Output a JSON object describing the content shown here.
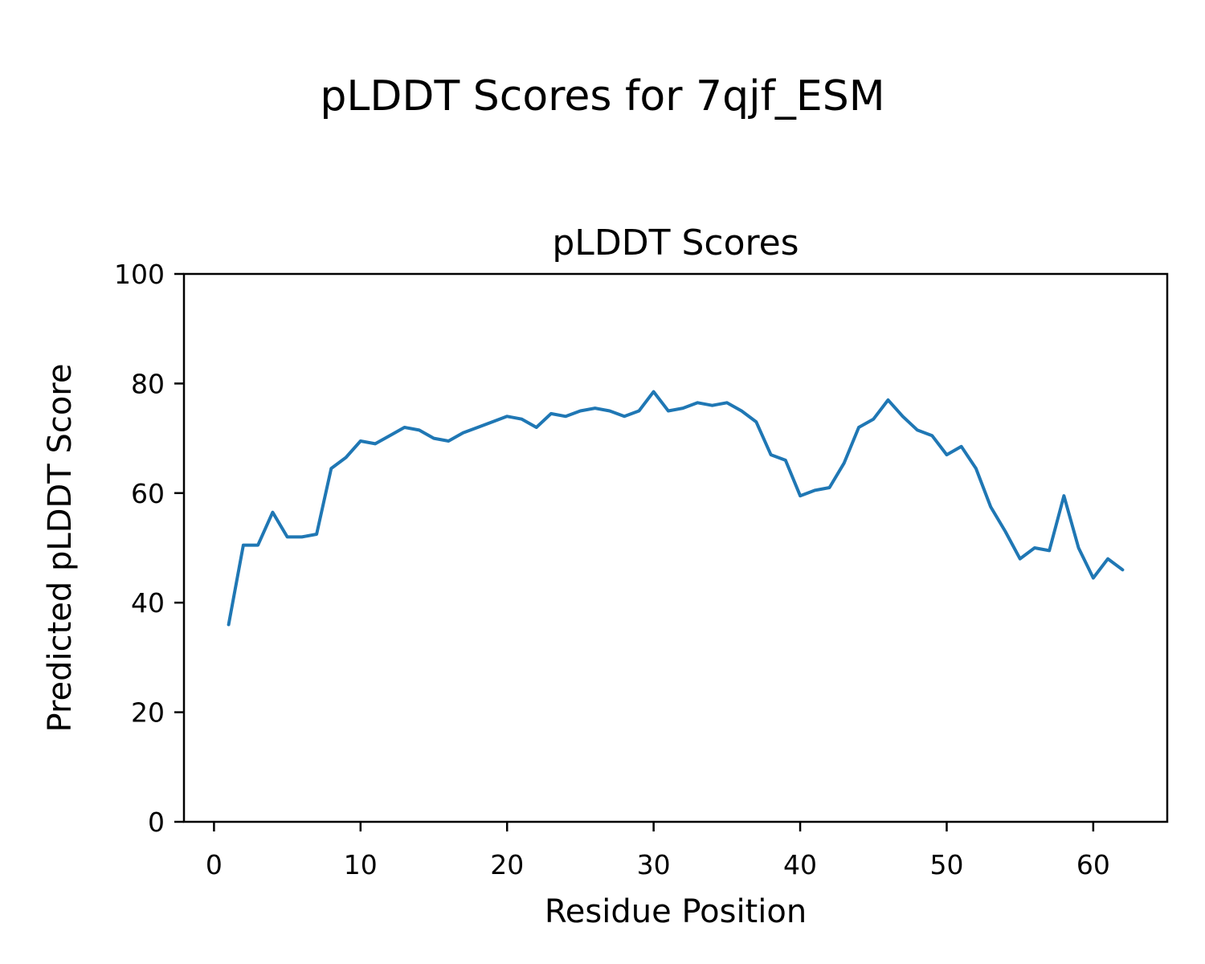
{
  "figure": {
    "suptitle": "pLDDT Scores for 7qjf_ESM"
  },
  "chart_data": {
    "type": "line",
    "title": "pLDDT Scores",
    "xlabel": "Residue Position",
    "ylabel": "Predicted pLDDT Score",
    "series_name": "pLDDT",
    "x": [
      1,
      2,
      3,
      4,
      5,
      6,
      7,
      8,
      9,
      10,
      11,
      12,
      13,
      14,
      15,
      16,
      17,
      18,
      19,
      20,
      21,
      22,
      23,
      24,
      25,
      26,
      27,
      28,
      29,
      30,
      31,
      32,
      33,
      34,
      35,
      36,
      37,
      38,
      39,
      40,
      41,
      42,
      43,
      44,
      45,
      46,
      47,
      48,
      49,
      50,
      51,
      52,
      53,
      54,
      55,
      56,
      57,
      58,
      59,
      60,
      61,
      62
    ],
    "y": [
      36,
      50.5,
      50.5,
      56.5,
      52,
      52,
      52.5,
      64.5,
      66.5,
      69.5,
      69,
      70.5,
      72,
      71.5,
      70,
      69.5,
      71,
      72,
      73,
      74,
      73.5,
      72,
      74.5,
      74,
      75,
      75.5,
      75,
      74,
      75,
      78.5,
      75,
      75.5,
      76.5,
      76,
      76.5,
      75,
      73,
      67,
      66,
      59.5,
      60.5,
      61,
      65.5,
      72,
      73.5,
      77,
      74,
      71.5,
      70.5,
      67,
      68.5,
      64.5,
      57.5,
      53,
      48,
      50,
      49.5,
      59.5,
      50,
      44.5,
      48,
      46
    ],
    "xlim": [
      -2.05,
      65.05
    ],
    "ylim": [
      0,
      100
    ],
    "x_ticks": [
      0,
      10,
      20,
      30,
      40,
      50,
      60
    ],
    "y_ticks": [
      0,
      20,
      40,
      60,
      80,
      100
    ],
    "grid": false,
    "legend": "none",
    "line_color": "#1f77b4",
    "axis_color": "#000000",
    "background": "#ffffff"
  }
}
